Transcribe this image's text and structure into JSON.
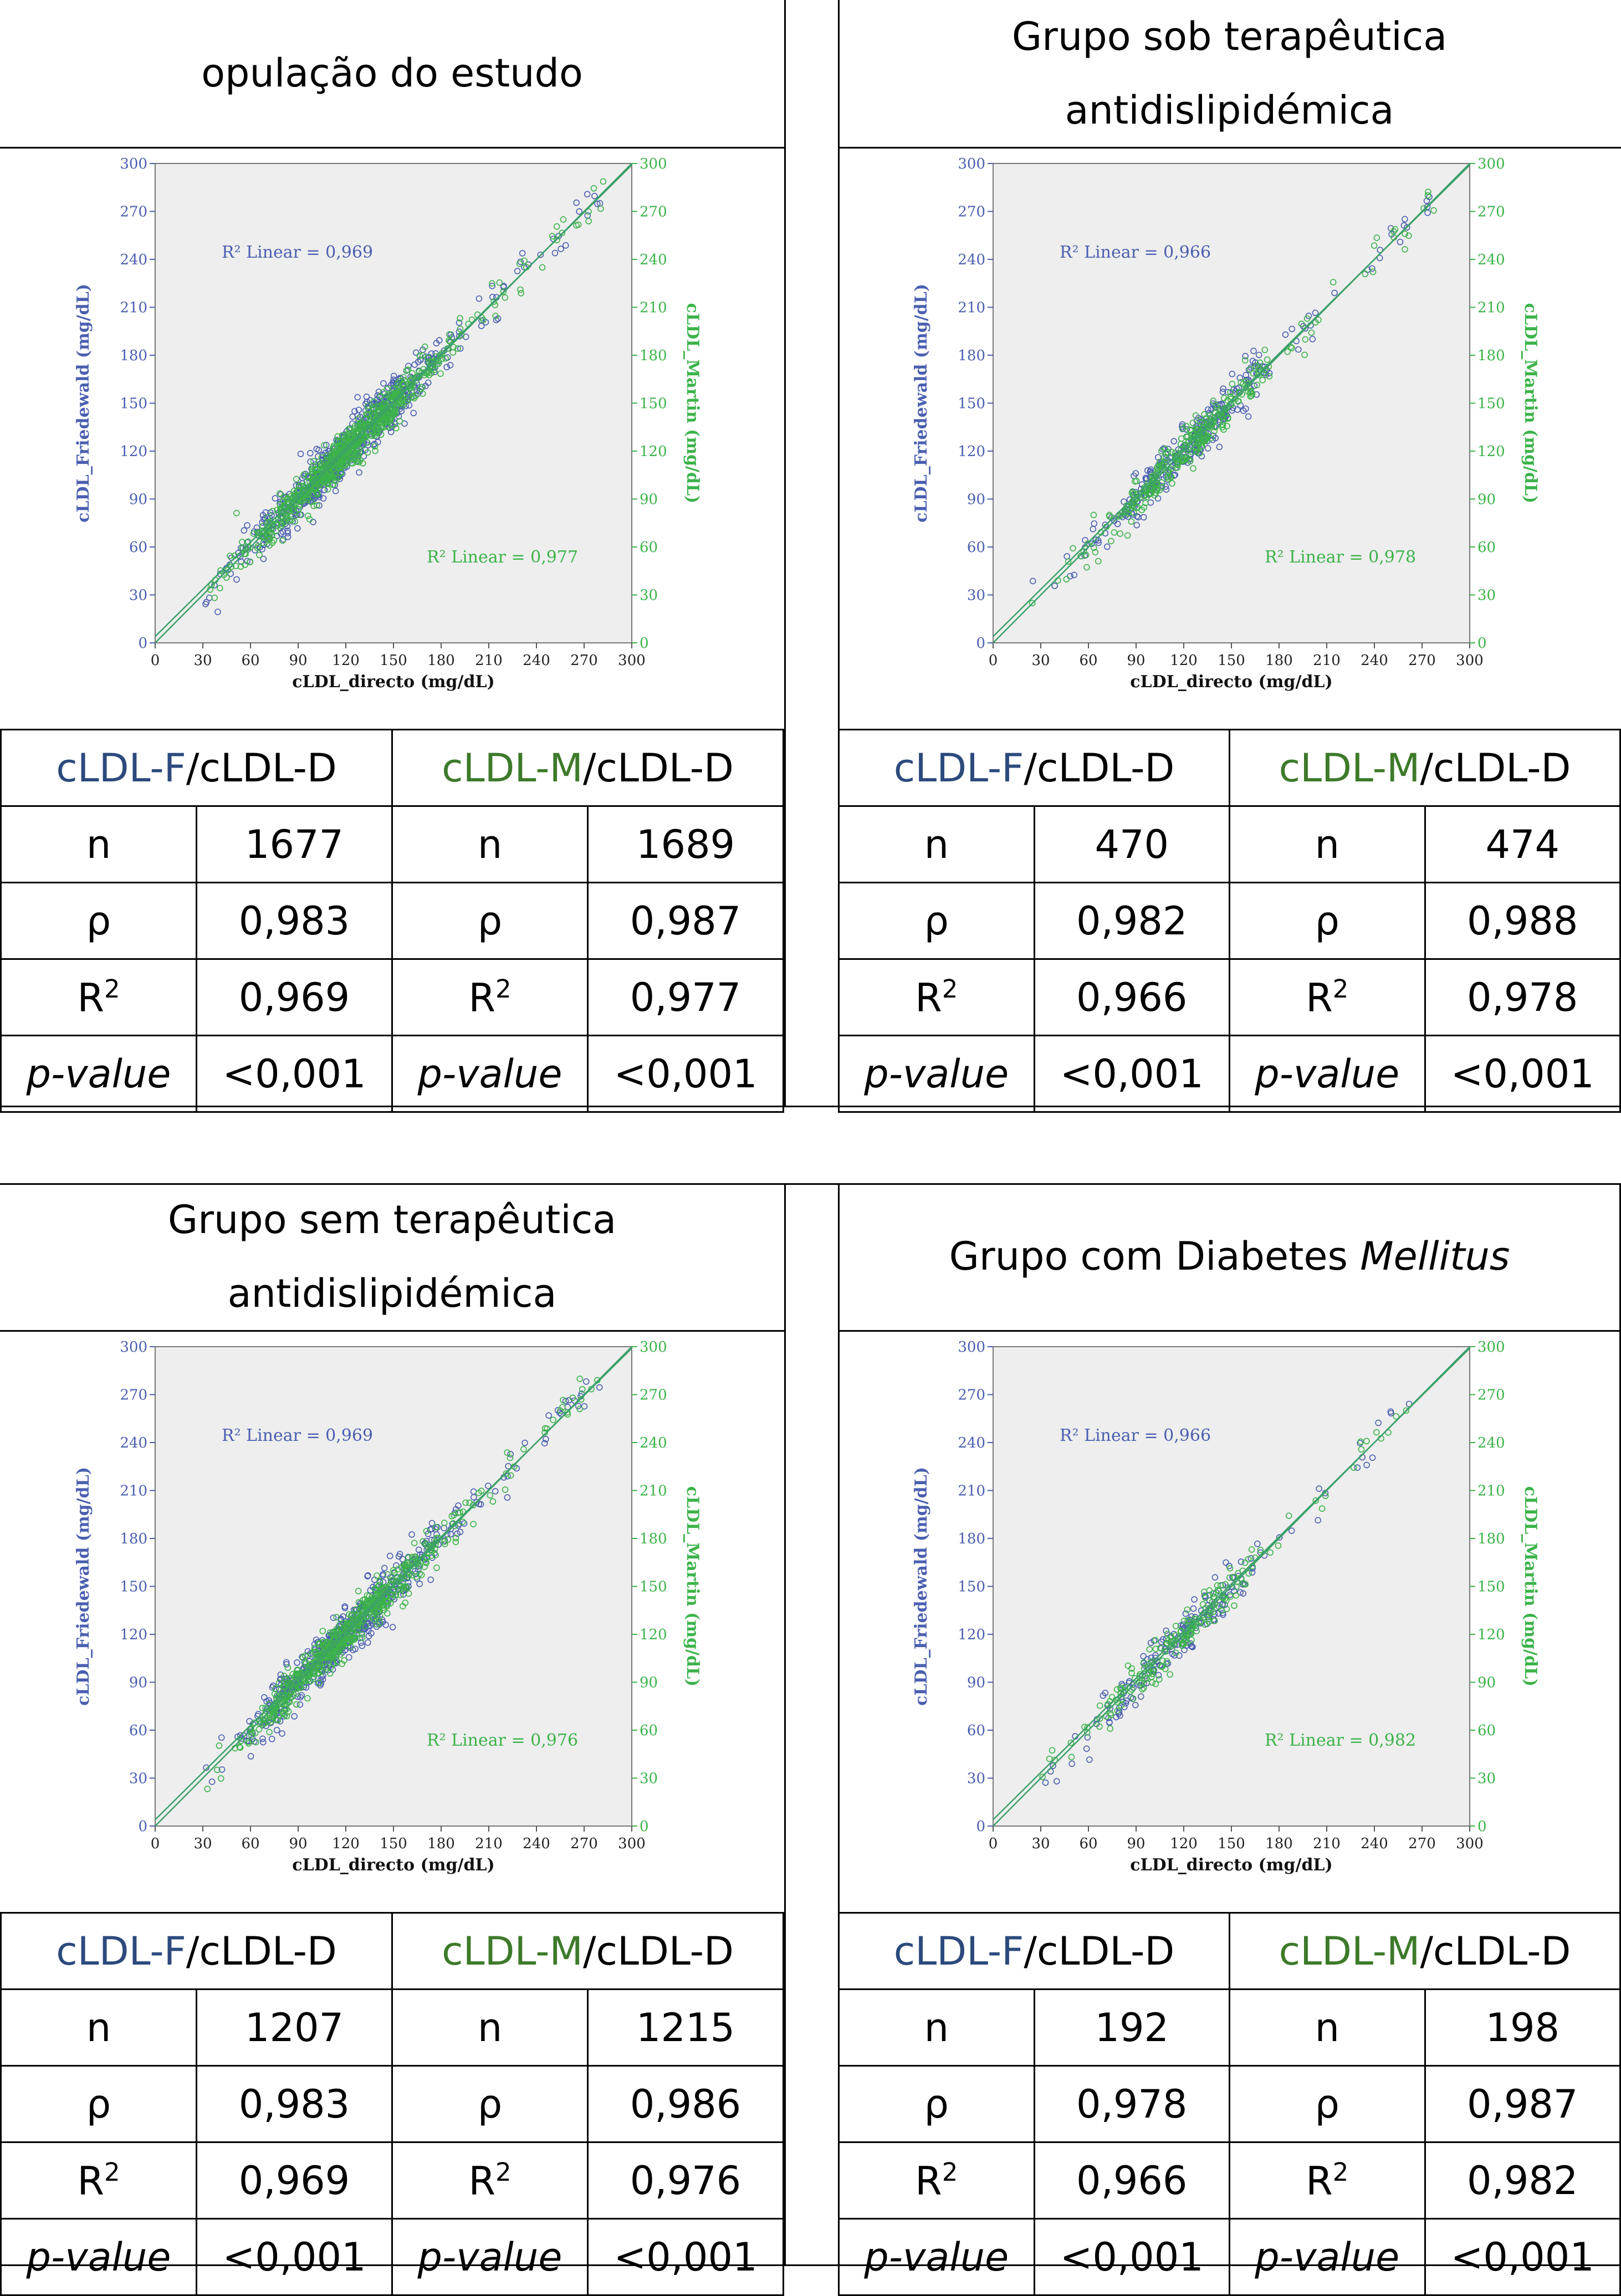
{
  "quadrants": [
    {
      "title_lines": [
        "opulação do estudo"
      ],
      "title_italic": "",
      "chart": {
        "type": "scatter",
        "xlabel": "cLDL_directo (mg/dL)",
        "ylabel_left": "cLDL_Friedewald (mg/dL)",
        "ylabel_right": "cLDL_Martin (mg/dL)",
        "xlim": [
          0,
          300
        ],
        "ylim": [
          0,
          300
        ],
        "ticks": [
          "0",
          "30",
          "60",
          "90",
          "120",
          "150",
          "180",
          "210",
          "240",
          "270",
          "300"
        ],
        "r2_friedewald": "R² Linear = 0,969",
        "r2_martin": "R² Linear = 0,977",
        "n_points": 700,
        "seed": 11
      },
      "stats": {
        "f_head_a": "cLDL-F",
        "f_head_b": "/cLDL-D",
        "m_head_a": "cLDL-M",
        "m_head_b": "/cLDL-D",
        "rows": [
          {
            "lf": "n",
            "vf": "1677",
            "lm": "n",
            "vm": "1689"
          },
          {
            "lf": "ρ",
            "vf": "0,983",
            "lm": "ρ",
            "vm": "0,987"
          },
          {
            "lf": "R2",
            "vf": "0,969",
            "lm": "R2",
            "vm": "0,977"
          },
          {
            "lf": "p-value",
            "vf": "<0,001",
            "lm": "p-value",
            "vm": "<0,001"
          }
        ]
      }
    },
    {
      "title_lines": [
        "Grupo sob terapêutica",
        "antidislipidémica"
      ],
      "title_italic": "",
      "chart": {
        "type": "scatter",
        "xlabel": "cLDL_directo (mg/dL)",
        "ylabel_left": "cLDL_Friedewald (mg/dL)",
        "ylabel_right": "cLDL_Martin (mg/dL)",
        "xlim": [
          0,
          300
        ],
        "ylim": [
          0,
          300
        ],
        "ticks": [
          "0",
          "30",
          "60",
          "90",
          "120",
          "150",
          "180",
          "210",
          "240",
          "270",
          "300"
        ],
        "r2_friedewald": "R² Linear = 0,966",
        "r2_martin": "R² Linear = 0,978",
        "n_points": 300,
        "seed": 23
      },
      "stats": {
        "f_head_a": "cLDL-F",
        "f_head_b": "/cLDL-D",
        "m_head_a": "cLDL-M",
        "m_head_b": "/cLDL-D",
        "rows": [
          {
            "lf": "n",
            "vf": "470",
            "lm": "n",
            "vm": "474"
          },
          {
            "lf": "ρ",
            "vf": "0,982",
            "lm": "ρ",
            "vm": "0,988"
          },
          {
            "lf": "R2",
            "vf": "0,966",
            "lm": "R2",
            "vm": "0,978"
          },
          {
            "lf": "p-value",
            "vf": "<0,001",
            "lm": "p-value",
            "vm": "<0,001"
          }
        ]
      }
    },
    {
      "title_lines": [
        "Grupo sem terapêutica",
        "antidislipidémica"
      ],
      "title_italic": "",
      "chart": {
        "type": "scatter",
        "xlabel": "cLDL_directo (mg/dL)",
        "ylabel_left": "cLDL_Friedewald (mg/dL)",
        "ylabel_right": "cLDL_Martin (mg/dL)",
        "xlim": [
          0,
          300
        ],
        "ylim": [
          0,
          300
        ],
        "ticks": [
          "0",
          "30",
          "60",
          "90",
          "120",
          "150",
          "180",
          "210",
          "240",
          "270",
          "300"
        ],
        "r2_friedewald": "R² Linear = 0,969",
        "r2_martin": "R² Linear = 0,976",
        "n_points": 600,
        "seed": 37
      },
      "stats": {
        "f_head_a": "cLDL-F",
        "f_head_b": "/cLDL-D",
        "m_head_a": "cLDL-M",
        "m_head_b": "/cLDL-D",
        "rows": [
          {
            "lf": "n",
            "vf": "1207",
            "lm": "n",
            "vm": "1215"
          },
          {
            "lf": "ρ",
            "vf": "0,983",
            "lm": "ρ",
            "vm": "0,986"
          },
          {
            "lf": "R2",
            "vf": "0,969",
            "lm": "R2",
            "vm": "0,976"
          },
          {
            "lf": "p-value",
            "vf": "<0,001",
            "lm": "p-value",
            "vm": "<0,001"
          }
        ]
      }
    },
    {
      "title_lines": [
        "Grupo com Diabetes "
      ],
      "title_italic": "Mellitus",
      "chart": {
        "type": "scatter",
        "xlabel": "cLDL_directo (mg/dL)",
        "ylabel_left": "cLDL_Friedewald (mg/dL)",
        "ylabel_right": "cLDL_Martin (mg/dL)",
        "xlim": [
          0,
          300
        ],
        "ylim": [
          0,
          300
        ],
        "ticks": [
          "0",
          "30",
          "60",
          "90",
          "120",
          "150",
          "180",
          "210",
          "240",
          "270",
          "300"
        ],
        "r2_friedewald": "R² Linear = 0,966",
        "r2_martin": "R² Linear = 0,982",
        "n_points": 190,
        "seed": 53
      },
      "stats": {
        "f_head_a": "cLDL-F",
        "f_head_b": "/cLDL-D",
        "m_head_a": "cLDL-M",
        "m_head_b": "/cLDL-D",
        "rows": [
          {
            "lf": "n",
            "vf": "192",
            "lm": "n",
            "vm": "198"
          },
          {
            "lf": "ρ",
            "vf": "0,978",
            "lm": "ρ",
            "vm": "0,987"
          },
          {
            "lf": "R2",
            "vf": "0,966",
            "lm": "R2",
            "vm": "0,982"
          },
          {
            "lf": "p-value",
            "vf": "<0,001",
            "lm": "p-value",
            "vm": "<0,001"
          }
        ]
      }
    }
  ],
  "colors": {
    "friedewald": "#4a5fb0",
    "martin": "#3cb34a",
    "fit": "#3ca06a",
    "plot_bg": "#eeeeee"
  }
}
